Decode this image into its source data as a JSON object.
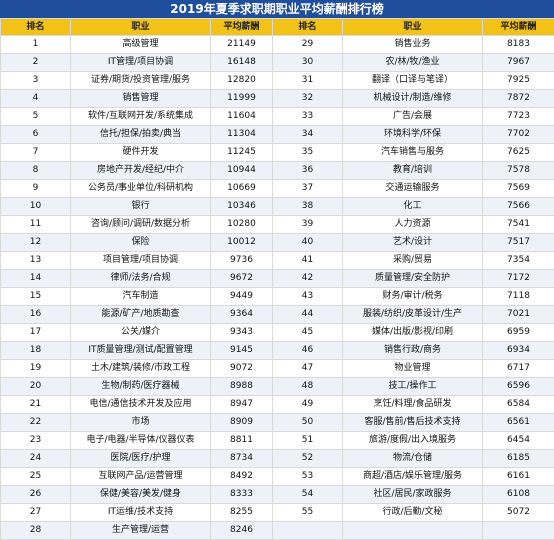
{
  "title": "2019年夏季求职期职业平均薪酬排行榜",
  "headers": [
    "排名",
    "职业",
    "平均薪酬",
    "排名",
    "职业",
    "平均薪酬"
  ],
  "rows": [
    {
      "r1": "1",
      "j1": "高级管理",
      "s1": "21149",
      "r2": "29",
      "j2": "销售业务",
      "s2": "8183"
    },
    {
      "r1": "2",
      "j1": "IT管理/项目协调",
      "s1": "16148",
      "r2": "30",
      "j2": "农/林/牧/渔业",
      "s2": "7967"
    },
    {
      "r1": "3",
      "j1": "证券/期货/投资管理/服务",
      "s1": "12820",
      "r2": "31",
      "j2": "翻译（口译与笔译）",
      "s2": "7925"
    },
    {
      "r1": "4",
      "j1": "销售管理",
      "s1": "11999",
      "r2": "32",
      "j2": "机械设计/制造/维修",
      "s2": "7872"
    },
    {
      "r1": "5",
      "j1": "软件/互联网开发/系统集成",
      "s1": "11604",
      "r2": "33",
      "j2": "广告/会展",
      "s2": "7723"
    },
    {
      "r1": "6",
      "j1": "信托/担保/拍卖/典当",
      "s1": "11304",
      "r2": "34",
      "j2": "环境科学/环保",
      "s2": "7702"
    },
    {
      "r1": "7",
      "j1": "硬件开发",
      "s1": "11245",
      "r2": "35",
      "j2": "汽车销售与服务",
      "s2": "7625"
    },
    {
      "r1": "8",
      "j1": "房地产开发/经纪/中介",
      "s1": "10944",
      "r2": "36",
      "j2": "教育/培训",
      "s2": "7578"
    },
    {
      "r1": "9",
      "j1": "公务员/事业单位/科研机构",
      "s1": "10669",
      "r2": "37",
      "j2": "交通运输服务",
      "s2": "7569"
    },
    {
      "r1": "10",
      "j1": "银行",
      "s1": "10346",
      "r2": "38",
      "j2": "化工",
      "s2": "7566"
    },
    {
      "r1": "11",
      "j1": "咨询/顾问/调研/数据分析",
      "s1": "10280",
      "r2": "39",
      "j2": "人力资源",
      "s2": "7541"
    },
    {
      "r1": "12",
      "j1": "保险",
      "s1": "10012",
      "r2": "40",
      "j2": "艺术/设计",
      "s2": "7517"
    },
    {
      "r1": "13",
      "j1": "项目管理/项目协调",
      "s1": "9736",
      "r2": "41",
      "j2": "采购/贸易",
      "s2": "7354"
    },
    {
      "r1": "14",
      "j1": "律师/法务/合规",
      "s1": "9672",
      "r2": "42",
      "j2": "质量管理/安全防护",
      "s2": "7172"
    },
    {
      "r1": "15",
      "j1": "汽车制造",
      "s1": "9449",
      "r2": "43",
      "j2": "财务/审计/税务",
      "s2": "7118"
    },
    {
      "r1": "16",
      "j1": "能源/矿产/地质勘查",
      "s1": "9364",
      "r2": "44",
      "j2": "服装/纺织/皮革设计/生产",
      "s2": "7021"
    },
    {
      "r1": "17",
      "j1": "公关/媒介",
      "s1": "9343",
      "r2": "45",
      "j2": "媒体/出版/影视/印刷",
      "s2": "6959"
    },
    {
      "r1": "18",
      "j1": "IT质量管理/测试/配置管理",
      "s1": "9145",
      "r2": "46",
      "j2": "销售行政/商务",
      "s2": "6934"
    },
    {
      "r1": "19",
      "j1": "土木/建筑/装修/市政工程",
      "s1": "9072",
      "r2": "47",
      "j2": "物业管理",
      "s2": "6717"
    },
    {
      "r1": "20",
      "j1": "生物/制药/医疗器械",
      "s1": "8988",
      "r2": "48",
      "j2": "技工/操作工",
      "s2": "6596"
    },
    {
      "r1": "21",
      "j1": "电信/通信技术开发及应用",
      "s1": "8947",
      "r2": "49",
      "j2": "烹饪/料理/食品研发",
      "s2": "6584"
    },
    {
      "r1": "22",
      "j1": "市场",
      "s1": "8909",
      "r2": "50",
      "j2": "客服/售前/售后技术支持",
      "s2": "6561"
    },
    {
      "r1": "23",
      "j1": "电子/电器/半导体/仪器仪表",
      "s1": "8811",
      "r2": "51",
      "j2": "旅游/度假/出入境服务",
      "s2": "6454"
    },
    {
      "r1": "24",
      "j1": "医院/医疗/护理",
      "s1": "8734",
      "r2": "52",
      "j2": "物流/仓储",
      "s2": "6185"
    },
    {
      "r1": "25",
      "j1": "互联网产品/运营管理",
      "s1": "8492",
      "r2": "53",
      "j2": "商超/酒店/娱乐管理/服务",
      "s2": "6161"
    },
    {
      "r1": "26",
      "j1": "保健/美容/美发/健身",
      "s1": "8333",
      "r2": "54",
      "j2": "社区/居民/家政服务",
      "s2": "6108"
    },
    {
      "r1": "27",
      "j1": "IT运维/技术支持",
      "s1": "8255",
      "r2": "55",
      "j2": "行政/后勤/文秘",
      "s2": "5072"
    },
    {
      "r1": "28",
      "j1": "生产管理/运营",
      "s1": "8246",
      "r2": "",
      "j2": "",
      "s2": ""
    }
  ]
}
